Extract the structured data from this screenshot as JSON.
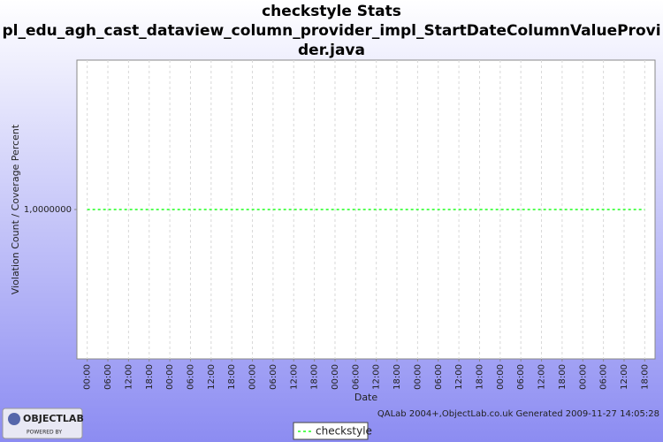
{
  "chart_data": {
    "type": "line",
    "title": "checkstyle  Stats",
    "subtitle": "pl_edu_agh_cast_dataview_column_provider_impl_StartDateColumnValueProvider.java",
    "x_label": "Date",
    "y_label": "Violation Count / Coverage Percent",
    "categories": [
      "00:00",
      "06:00",
      "12:00",
      "18:00",
      "00:00",
      "06:00",
      "12:00",
      "18:00",
      "00:00",
      "06:00",
      "12:00",
      "18:00",
      "00:00",
      "06:00",
      "12:00",
      "18:00",
      "00:00",
      "06:00",
      "12:00",
      "18:00",
      "00:00",
      "06:00",
      "12:00",
      "18:00",
      "00:00",
      "06:00",
      "12:00",
      "18:00"
    ],
    "series": [
      {
        "name": "checkstyle",
        "color": "#55ff55",
        "values": [
          1,
          1,
          1,
          1,
          1,
          1,
          1,
          1,
          1,
          1,
          1,
          1,
          1,
          1,
          1,
          1,
          1,
          1,
          1,
          1,
          1,
          1,
          1,
          1,
          1,
          1,
          1,
          1
        ]
      }
    ],
    "ylim": [
      0.9,
      1.1
    ],
    "yticks": [
      {
        "value": 1,
        "label": "1,0000000"
      }
    ],
    "grid": true,
    "legend": "bottom",
    "footer": "QALab 2004+,ObjectLab.co.uk Generated 2009-11-27 14:05:28",
    "logo": {
      "name": "OBJECTLAB",
      "tagline": "POWERED BY"
    }
  }
}
